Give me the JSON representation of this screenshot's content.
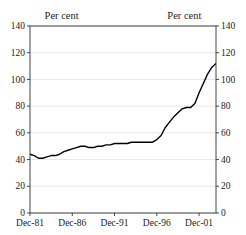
{
  "chart_data": {
    "type": "line",
    "ylabel": "Per cent",
    "y2label": "Per cent",
    "color": "#000000",
    "xlim": [
      1981,
      2003
    ],
    "xticks": [
      {
        "value": 1981,
        "label": "Dec-81"
      },
      {
        "value": 1986,
        "label": "Dec-86"
      },
      {
        "value": 1991,
        "label": "Dec-91"
      },
      {
        "value": 1996,
        "label": "Dec-96"
      },
      {
        "value": 2001,
        "label": "Dec-01"
      }
    ],
    "ylim": [
      0,
      140
    ],
    "yticks": [
      0,
      20,
      40,
      60,
      80,
      100,
      120,
      140
    ],
    "y2lim": [
      0,
      140
    ],
    "y2ticks": [
      0,
      20,
      40,
      60,
      80,
      100,
      120,
      140
    ],
    "x": [
      1981.0,
      1981.5,
      1982.0,
      1982.5,
      1983.0,
      1983.5,
      1984.0,
      1984.5,
      1985.0,
      1985.5,
      1986.0,
      1986.5,
      1987.0,
      1987.5,
      1988.0,
      1988.5,
      1989.0,
      1989.5,
      1990.0,
      1990.5,
      1991.0,
      1991.5,
      1992.0,
      1992.5,
      1993.0,
      1993.5,
      1994.0,
      1994.5,
      1995.0,
      1995.5,
      1996.0,
      1996.5,
      1997.0,
      1997.5,
      1998.0,
      1998.5,
      1999.0,
      1999.5,
      2000.0,
      2000.5,
      2001.0,
      2001.5,
      2002.0,
      2002.5,
      2003.0
    ],
    "values": [
      44,
      43,
      41,
      41,
      42,
      43,
      43,
      44,
      46,
      47,
      48,
      49,
      50,
      50,
      49,
      49,
      50,
      50,
      51,
      51,
      52,
      52,
      52,
      52,
      53,
      53,
      53,
      53,
      53,
      53,
      55,
      58,
      64,
      68,
      72,
      75,
      78,
      79,
      79,
      82,
      90,
      97,
      104,
      109,
      112
    ]
  }
}
